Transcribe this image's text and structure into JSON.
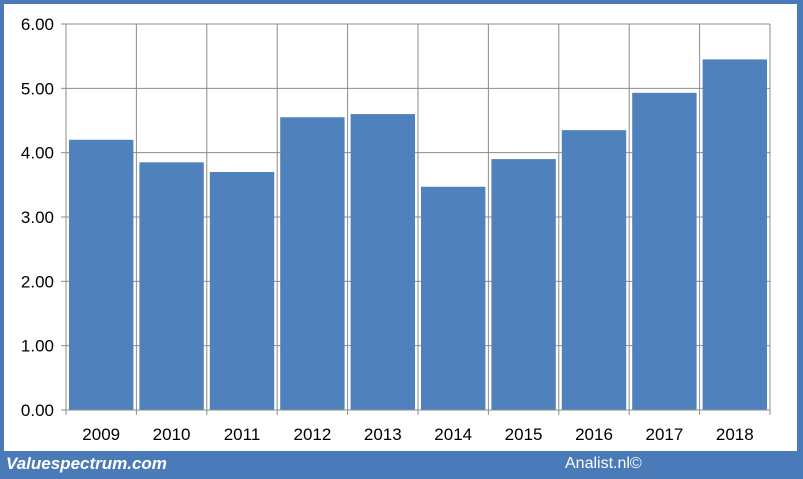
{
  "chart_data": {
    "type": "bar",
    "categories": [
      "2009",
      "2010",
      "2011",
      "2012",
      "2013",
      "2014",
      "2015",
      "2016",
      "2017",
      "2018"
    ],
    "values": [
      4.2,
      3.85,
      3.7,
      4.55,
      4.6,
      3.47,
      3.9,
      4.35,
      4.93,
      5.45
    ],
    "ylim": [
      0,
      6
    ],
    "yticks": [
      "0.00",
      "1.00",
      "2.00",
      "3.00",
      "4.00",
      "5.00",
      "6.00"
    ],
    "grid": true,
    "bar_color": "#4f81bd"
  },
  "footer": {
    "source_left": "Valuespectrum.com",
    "source_right": "Analist.nl©"
  },
  "colors": {
    "frame": "#4a7ab8",
    "grid": "#8c8c8c"
  }
}
